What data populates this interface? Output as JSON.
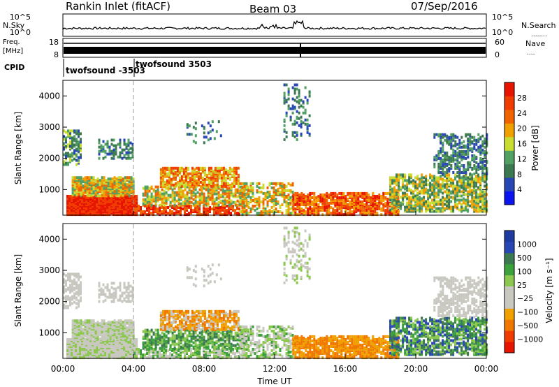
{
  "header": {
    "title": "Rankin Inlet (fitACF)",
    "beam": "Beam 03",
    "date": "07/Sep/2016"
  },
  "top_panels": {
    "nsky_label": "N.Sky",
    "nsearch_label": "N.Search",
    "nsky_ticks": [
      "10^5",
      "10^0"
    ],
    "nsearch_ticks": [
      "10^5",
      "10^0"
    ],
    "freq_label": "Freq.",
    "freq_unit": "[MHz]",
    "freq_ticks": [
      "18",
      "8"
    ],
    "nave_label": "Nave",
    "nave_ticks": [
      "60",
      "0"
    ],
    "cpid_label": "CPID",
    "cpid_entries": [
      {
        "name": "twofsound -3503"
      },
      {
        "name": "twofsound 3503"
      }
    ]
  },
  "colors": {
    "power_scale": [
      "#0a14f0",
      "#2846b4",
      "#3c7850",
      "#50a064",
      "#c8dc32",
      "#f0a000",
      "#f06400",
      "#f03c00",
      "#e61400"
    ],
    "velocity_scale": [
      "#e61400",
      "#f03c00",
      "#f07800",
      "#f0a000",
      "#c8c8c0",
      "#c8c8c0",
      "#8cc850",
      "#3ca03c",
      "#3c7850",
      "#2846b4",
      "#1e3ca0"
    ]
  },
  "chart_data": [
    {
      "type": "heatmap",
      "name": "power-panel",
      "ylabel": "Slant Range [km]",
      "yticks": [
        "4000",
        "3000",
        "2000",
        "1000"
      ],
      "ylim": [
        180,
        4500
      ],
      "xlim": [
        0,
        24
      ],
      "colorbar_label": "Power [dB]",
      "colorbar_ticks": [
        "28",
        "24",
        "20",
        "16",
        "12",
        "8",
        "4"
      ]
    },
    {
      "type": "heatmap",
      "name": "velocity-panel",
      "ylabel": "Slant Range [km]",
      "yticks": [
        "4000",
        "3000",
        "2000",
        "1000"
      ],
      "ylim": [
        180,
        4500
      ],
      "xlim": [
        0,
        24
      ],
      "colorbar_label": "Velocity [m s⁻¹]",
      "colorbar_ticks": [
        "1000",
        "500",
        "100",
        "25",
        "−25",
        "−100",
        "−500",
        "−1000"
      ],
      "xticks": [
        "00:00",
        "04:00",
        "08:00",
        "12:00",
        "16:00",
        "20:00",
        "00:00"
      ],
      "xlabel": "Time UT"
    }
  ]
}
